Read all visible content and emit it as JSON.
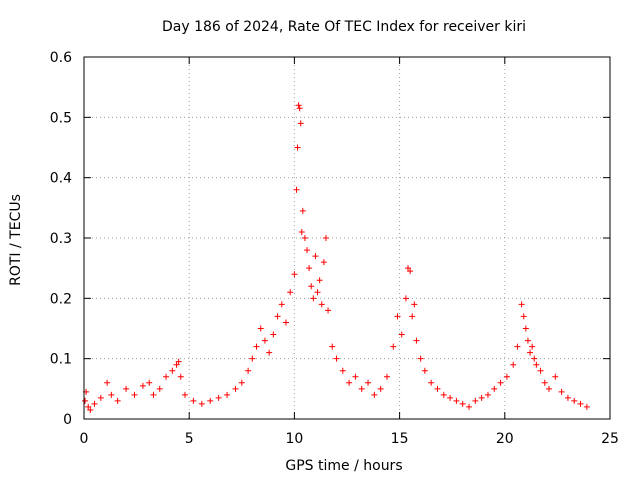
{
  "chart_data": {
    "type": "scatter",
    "title": "Day 186 of 2024, Rate Of TEC Index for receiver kiri",
    "xlabel": "GPS time / hours",
    "ylabel": "ROTI / TECUs",
    "xlim": [
      0,
      25
    ],
    "ylim": [
      0,
      0.6
    ],
    "x_ticks": [
      "0",
      "5",
      "10",
      "15",
      "20",
      "25"
    ],
    "y_ticks": [
      "0",
      "0.1",
      "0.2",
      "0.3",
      "0.4",
      "0.5",
      "0.6"
    ],
    "grid": true,
    "marker": "+",
    "color": "#ff0000",
    "series": [
      {
        "name": "ROTI",
        "x": [
          0.05,
          0.1,
          0.2,
          0.3,
          0.5,
          0.8,
          1.1,
          1.3,
          1.6,
          2.0,
          2.4,
          2.8,
          3.1,
          3.3,
          3.6,
          3.9,
          4.2,
          4.4,
          4.5,
          4.6,
          4.8,
          5.2,
          5.6,
          6.0,
          6.4,
          6.8,
          7.2,
          7.5,
          7.8,
          8.0,
          8.2,
          8.4,
          8.6,
          8.8,
          9.0,
          9.2,
          9.4,
          9.6,
          9.8,
          10.0,
          10.1,
          10.15,
          10.2,
          10.25,
          10.3,
          10.35,
          10.4,
          10.5,
          10.6,
          10.7,
          10.8,
          10.9,
          11.0,
          11.1,
          11.2,
          11.3,
          11.4,
          11.5,
          11.6,
          11.8,
          12.0,
          12.3,
          12.6,
          12.9,
          13.2,
          13.5,
          13.8,
          14.1,
          14.4,
          14.7,
          14.9,
          15.1,
          15.3,
          15.4,
          15.5,
          15.6,
          15.7,
          15.8,
          16.0,
          16.2,
          16.5,
          16.8,
          17.1,
          17.4,
          17.7,
          18.0,
          18.3,
          18.6,
          18.9,
          19.2,
          19.5,
          19.8,
          20.1,
          20.4,
          20.6,
          20.8,
          20.9,
          21.0,
          21.1,
          21.2,
          21.3,
          21.4,
          21.5,
          21.7,
          21.9,
          22.1,
          22.4,
          22.7,
          23.0,
          23.3,
          23.6,
          23.9
        ],
        "y": [
          0.03,
          0.045,
          0.02,
          0.015,
          0.025,
          0.035,
          0.06,
          0.04,
          0.03,
          0.05,
          0.04,
          0.055,
          0.06,
          0.04,
          0.05,
          0.07,
          0.08,
          0.09,
          0.095,
          0.07,
          0.04,
          0.03,
          0.025,
          0.03,
          0.035,
          0.04,
          0.05,
          0.06,
          0.08,
          0.1,
          0.12,
          0.15,
          0.13,
          0.11,
          0.14,
          0.17,
          0.19,
          0.16,
          0.21,
          0.24,
          0.38,
          0.45,
          0.52,
          0.515,
          0.49,
          0.31,
          0.345,
          0.3,
          0.28,
          0.25,
          0.22,
          0.2,
          0.27,
          0.21,
          0.23,
          0.19,
          0.26,
          0.3,
          0.18,
          0.12,
          0.1,
          0.08,
          0.06,
          0.07,
          0.05,
          0.06,
          0.04,
          0.05,
          0.07,
          0.12,
          0.17,
          0.14,
          0.2,
          0.25,
          0.245,
          0.17,
          0.19,
          0.13,
          0.1,
          0.08,
          0.06,
          0.05,
          0.04,
          0.035,
          0.03,
          0.025,
          0.02,
          0.03,
          0.035,
          0.04,
          0.05,
          0.06,
          0.07,
          0.09,
          0.12,
          0.19,
          0.17,
          0.15,
          0.13,
          0.11,
          0.12,
          0.1,
          0.09,
          0.08,
          0.06,
          0.05,
          0.07,
          0.045,
          0.035,
          0.03,
          0.025,
          0.02
        ]
      }
    ]
  }
}
